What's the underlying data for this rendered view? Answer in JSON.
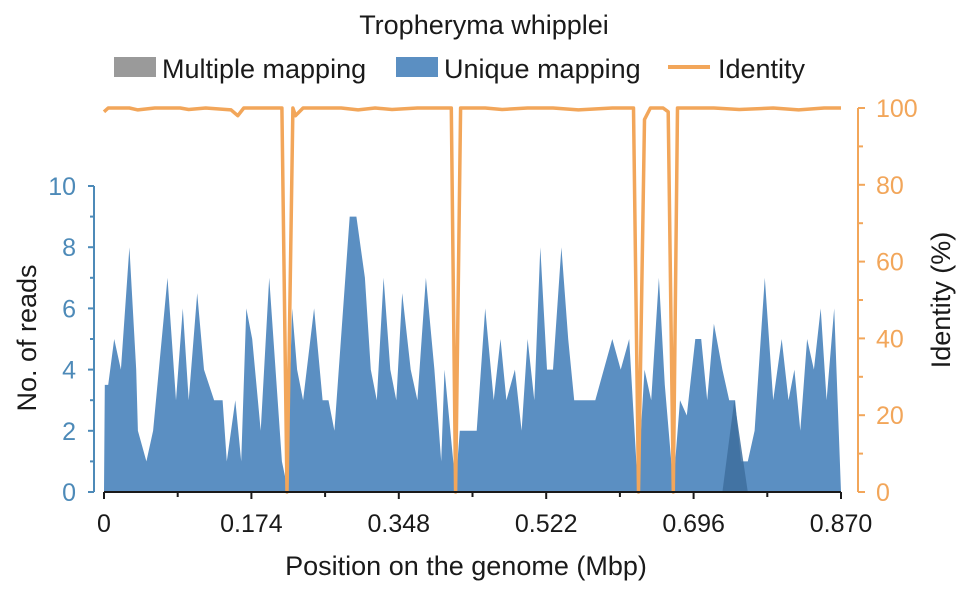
{
  "chart_data": {
    "type": "area",
    "title": "Tropheryma whipplei",
    "xlabel": "Position on the genome (Mbp)",
    "ylabel_left": "No. of reads",
    "ylabel_right": "Identity (%)",
    "xlim": [
      0,
      0.87
    ],
    "ylim_left": [
      0,
      10
    ],
    "ylim_right": [
      0,
      100
    ],
    "x_ticks": [
      "0",
      "0.174",
      "0.348",
      "0.522",
      "0.696",
      "0.870"
    ],
    "x_tick_values": [
      0,
      0.174,
      0.348,
      0.522,
      0.696,
      0.87
    ],
    "y_ticks_left": [
      "0",
      "2",
      "4",
      "6",
      "8",
      "10"
    ],
    "y_ticks_right": [
      "0",
      "20",
      "40",
      "60",
      "80",
      "100"
    ],
    "legend_position": "top",
    "grid": false,
    "colors": {
      "multiple": "#9a9a9a",
      "unique": "#5b8fc2",
      "identity": "#f2a65a",
      "left_axis": "#4d8ab8",
      "right_axis": "#f2a65a",
      "overlap": "#3e6f9e"
    },
    "series": [
      {
        "name": "Multiple mapping",
        "kind": "area",
        "points": [
          [
            0,
            0
          ],
          [
            0.73,
            0
          ],
          [
            0.744,
            3.0
          ],
          [
            0.76,
            0
          ],
          [
            0.87,
            0
          ]
        ]
      },
      {
        "name": "Unique mapping",
        "kind": "area",
        "points": [
          [
            0,
            0
          ],
          [
            0.001,
            3.5
          ],
          [
            0.005,
            3.5
          ],
          [
            0.012,
            5.0
          ],
          [
            0.02,
            4.0
          ],
          [
            0.03,
            8.0
          ],
          [
            0.038,
            4.0
          ],
          [
            0.04,
            2.0
          ],
          [
            0.05,
            1.0
          ],
          [
            0.058,
            2.0
          ],
          [
            0.075,
            7.0
          ],
          [
            0.085,
            3.0
          ],
          [
            0.093,
            6.0
          ],
          [
            0.1,
            3.0
          ],
          [
            0.11,
            6.5
          ],
          [
            0.118,
            4.0
          ],
          [
            0.13,
            3.0
          ],
          [
            0.14,
            3.0
          ],
          [
            0.145,
            1.0
          ],
          [
            0.155,
            3.0
          ],
          [
            0.162,
            1.0
          ],
          [
            0.168,
            6.0
          ],
          [
            0.175,
            5.0
          ],
          [
            0.185,
            2.0
          ],
          [
            0.195,
            7.0
          ],
          [
            0.21,
            1.0
          ],
          [
            0.216,
            0.2
          ],
          [
            0.222,
            6.0
          ],
          [
            0.228,
            4.0
          ],
          [
            0.235,
            3.0
          ],
          [
            0.248,
            6.0
          ],
          [
            0.258,
            3.0
          ],
          [
            0.265,
            3.0
          ],
          [
            0.272,
            2.0
          ],
          [
            0.29,
            9.0
          ],
          [
            0.298,
            9.0
          ],
          [
            0.308,
            7.0
          ],
          [
            0.315,
            4.0
          ],
          [
            0.322,
            3.0
          ],
          [
            0.33,
            7.0
          ],
          [
            0.338,
            4.0
          ],
          [
            0.345,
            3.0
          ],
          [
            0.352,
            6.5
          ],
          [
            0.362,
            4.0
          ],
          [
            0.37,
            3.0
          ],
          [
            0.38,
            7.0
          ],
          [
            0.39,
            4.0
          ],
          [
            0.398,
            1.0
          ],
          [
            0.402,
            4.0
          ],
          [
            0.415,
            0.2
          ],
          [
            0.42,
            2.0
          ],
          [
            0.428,
            2.0
          ],
          [
            0.44,
            2.0
          ],
          [
            0.45,
            6.0
          ],
          [
            0.46,
            3.0
          ],
          [
            0.468,
            5.0
          ],
          [
            0.475,
            3.0
          ],
          [
            0.485,
            4.0
          ],
          [
            0.493,
            2.0
          ],
          [
            0.5,
            5.0
          ],
          [
            0.508,
            3.0
          ],
          [
            0.515,
            8.0
          ],
          [
            0.523,
            4.0
          ],
          [
            0.53,
            4.0
          ],
          [
            0.54,
            8.0
          ],
          [
            0.548,
            5.0
          ],
          [
            0.555,
            3.0
          ],
          [
            0.562,
            3.0
          ],
          [
            0.58,
            3.0
          ],
          [
            0.6,
            5.0
          ],
          [
            0.61,
            4.0
          ],
          [
            0.62,
            5.0
          ],
          [
            0.63,
            0.2
          ],
          [
            0.638,
            4.0
          ],
          [
            0.646,
            3.0
          ],
          [
            0.655,
            7.0
          ],
          [
            0.662,
            3.5
          ],
          [
            0.672,
            0.2
          ],
          [
            0.68,
            3.0
          ],
          [
            0.688,
            2.5
          ],
          [
            0.698,
            5.0
          ],
          [
            0.705,
            5.0
          ],
          [
            0.712,
            3.0
          ],
          [
            0.72,
            5.5
          ],
          [
            0.73,
            4.0
          ],
          [
            0.738,
            3.0
          ],
          [
            0.745,
            3.0
          ],
          [
            0.752,
            1.0
          ],
          [
            0.76,
            1.0
          ],
          [
            0.768,
            2.0
          ],
          [
            0.78,
            7.0
          ],
          [
            0.79,
            3.0
          ],
          [
            0.8,
            5.0
          ],
          [
            0.808,
            3.0
          ],
          [
            0.815,
            4.0
          ],
          [
            0.822,
            2.0
          ],
          [
            0.83,
            5.0
          ],
          [
            0.838,
            4.0
          ],
          [
            0.846,
            6.0
          ],
          [
            0.853,
            3.0
          ],
          [
            0.862,
            6.0
          ],
          [
            0.87,
            0
          ]
        ]
      },
      {
        "name": "Identity",
        "kind": "line",
        "axis": "right",
        "points": [
          [
            0,
            99
          ],
          [
            0.005,
            100
          ],
          [
            0.03,
            100
          ],
          [
            0.04,
            99.5
          ],
          [
            0.06,
            100
          ],
          [
            0.09,
            100
          ],
          [
            0.1,
            99.6
          ],
          [
            0.12,
            100
          ],
          [
            0.15,
            99.5
          ],
          [
            0.158,
            98
          ],
          [
            0.165,
            100
          ],
          [
            0.21,
            100
          ],
          [
            0.216,
            0
          ],
          [
            0.223,
            100
          ],
          [
            0.226,
            98
          ],
          [
            0.235,
            100
          ],
          [
            0.28,
            100
          ],
          [
            0.3,
            99.5
          ],
          [
            0.32,
            100
          ],
          [
            0.34,
            99.6
          ],
          [
            0.37,
            100
          ],
          [
            0.41,
            100
          ],
          [
            0.415,
            0
          ],
          [
            0.421,
            100
          ],
          [
            0.45,
            100
          ],
          [
            0.47,
            99.6
          ],
          [
            0.5,
            100
          ],
          [
            0.53,
            100
          ],
          [
            0.56,
            99.5
          ],
          [
            0.6,
            100
          ],
          [
            0.625,
            100
          ],
          [
            0.631,
            0
          ],
          [
            0.638,
            97
          ],
          [
            0.645,
            100
          ],
          [
            0.66,
            100
          ],
          [
            0.666,
            99
          ],
          [
            0.672,
            0
          ],
          [
            0.677,
            100
          ],
          [
            0.72,
            100
          ],
          [
            0.75,
            99.6
          ],
          [
            0.79,
            100
          ],
          [
            0.82,
            99.5
          ],
          [
            0.85,
            100
          ],
          [
            0.87,
            100
          ]
        ]
      }
    ]
  }
}
